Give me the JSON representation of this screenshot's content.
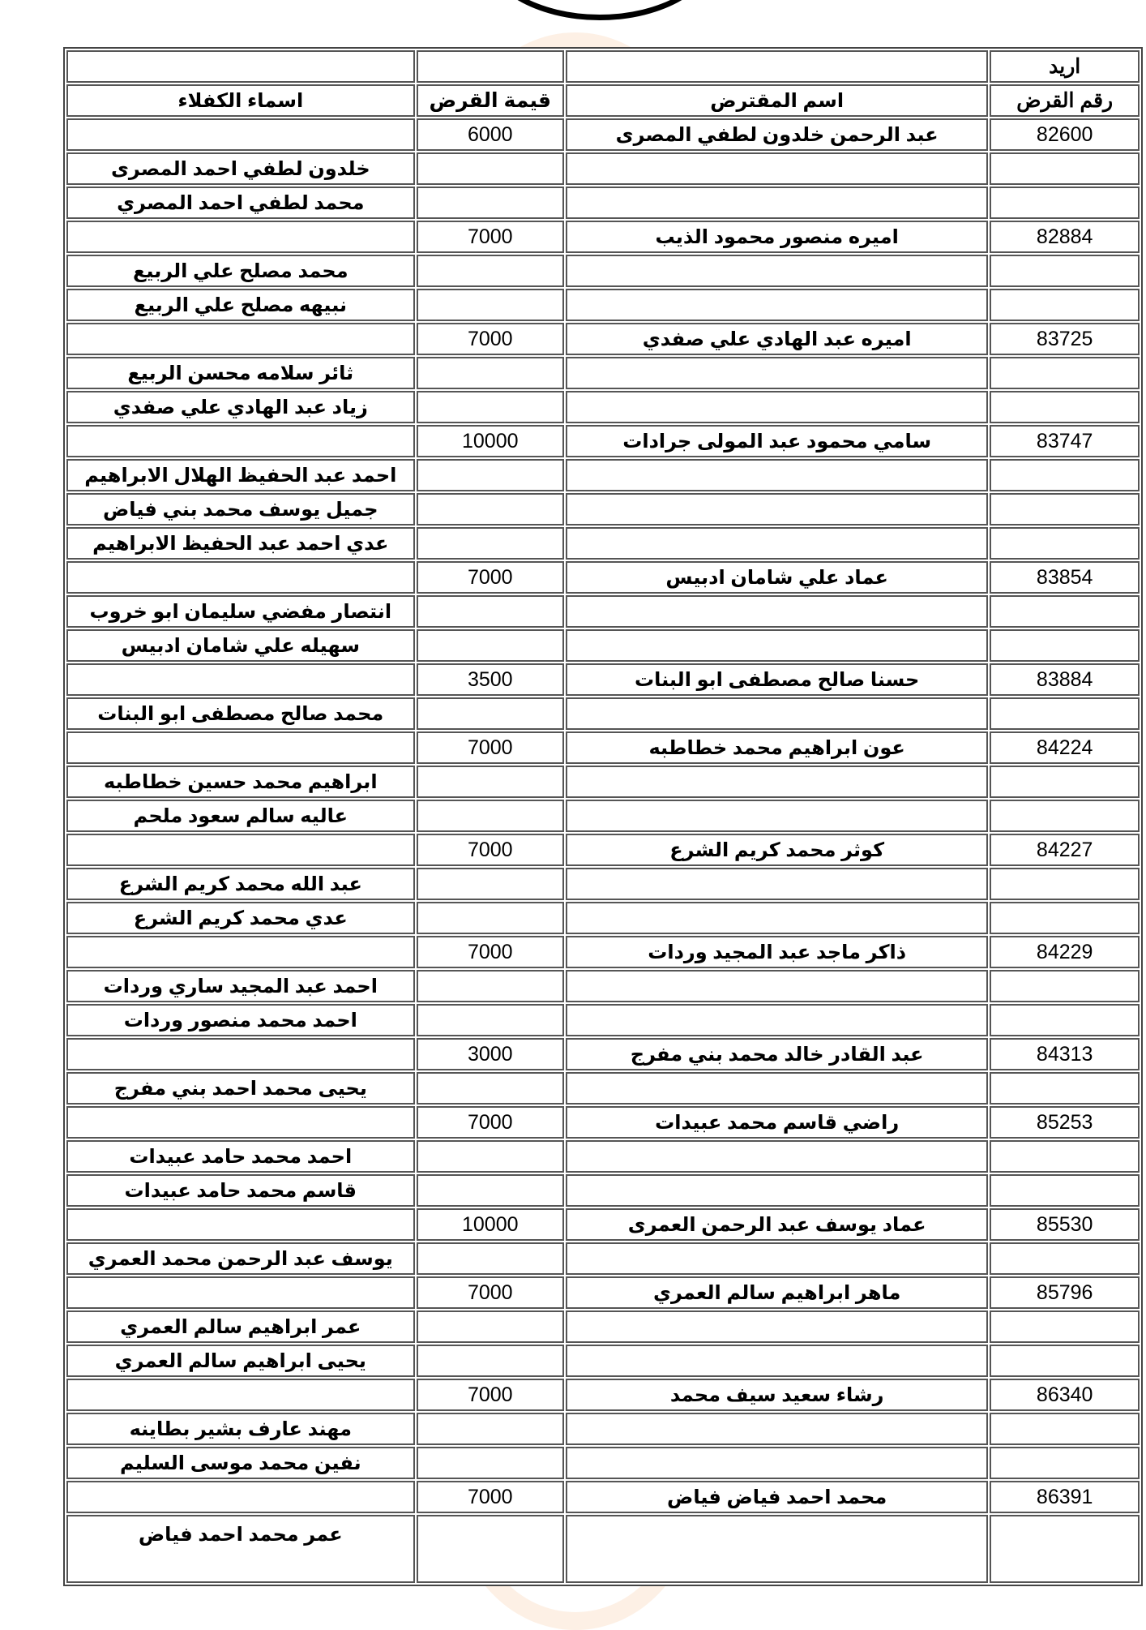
{
  "header": {
    "city": "اريد",
    "col_loan_no": "رقم القرض",
    "col_borrower": "اسم المقترض",
    "col_amount": "قيمة القرض",
    "col_guarantors": "اسماء الكفلاء"
  },
  "rows": [
    {
      "no": "82600",
      "borrower": "عبد الرحمن خلدون لطفي المصرى",
      "amount": "6000",
      "guarantor": ""
    },
    {
      "no": "",
      "borrower": "",
      "amount": "",
      "guarantor": "خلدون لطفي احمد المصرى"
    },
    {
      "no": "",
      "borrower": "",
      "amount": "",
      "guarantor": "محمد لطفي احمد المصري"
    },
    {
      "no": "82884",
      "borrower": "اميره منصور محمود الذيب",
      "amount": "7000",
      "guarantor": ""
    },
    {
      "no": "",
      "borrower": "",
      "amount": "",
      "guarantor": "محمد مصلح علي الربيع"
    },
    {
      "no": "",
      "borrower": "",
      "amount": "",
      "guarantor": "نبيهه مصلح علي الربيع"
    },
    {
      "no": "83725",
      "borrower": "اميره عبد الهادي علي صفدي",
      "amount": "7000",
      "guarantor": ""
    },
    {
      "no": "",
      "borrower": "",
      "amount": "",
      "guarantor": "ثائر سلامه محسن الربيع"
    },
    {
      "no": "",
      "borrower": "",
      "amount": "",
      "guarantor": "زياد عبد الهادي علي صفدي"
    },
    {
      "no": "83747",
      "borrower": "سامي محمود عبد المولى جرادات",
      "amount": "10000",
      "guarantor": ""
    },
    {
      "no": "",
      "borrower": "",
      "amount": "",
      "guarantor": "احمد عبد  الحفيظ الهلال الابراهيم"
    },
    {
      "no": "",
      "borrower": "",
      "amount": "",
      "guarantor": "جميل يوسف محمد بني فياض"
    },
    {
      "no": "",
      "borrower": "",
      "amount": "",
      "guarantor": "عدي احمد عبد  الحفيظ الابراهيم"
    },
    {
      "no": "83854",
      "borrower": "عماد علي شامان ادبيس",
      "amount": "7000",
      "guarantor": ""
    },
    {
      "no": "",
      "borrower": "",
      "amount": "",
      "guarantor": "انتصار مفضي سليمان ابو خروب"
    },
    {
      "no": "",
      "borrower": "",
      "amount": "",
      "guarantor": "سهيله علي شامان ادبيس"
    },
    {
      "no": "83884",
      "borrower": "حسنا صالح مصطفى ابو البنات",
      "amount": "3500",
      "guarantor": ""
    },
    {
      "no": "",
      "borrower": "",
      "amount": "",
      "guarantor": "محمد صالح مصطفى ابو البنات"
    },
    {
      "no": "84224",
      "borrower": "عون ابراهيم محمد خطاطبه",
      "amount": "7000",
      "guarantor": ""
    },
    {
      "no": "",
      "borrower": "",
      "amount": "",
      "guarantor": "ابراهيم محمد حسين خطاطبه"
    },
    {
      "no": "",
      "borrower": "",
      "amount": "",
      "guarantor": "عاليه سالم سعود ملحم"
    },
    {
      "no": "84227",
      "borrower": "كوثر محمد كريم الشرع",
      "amount": "7000",
      "guarantor": ""
    },
    {
      "no": "",
      "borrower": "",
      "amount": "",
      "guarantor": "عبد الله محمد كريم الشرع"
    },
    {
      "no": "",
      "borrower": "",
      "amount": "",
      "guarantor": "عدي محمد كريم الشرع"
    },
    {
      "no": "84229",
      "borrower": "ذاكر ماجد عبد المجيد وردات",
      "amount": "7000",
      "guarantor": ""
    },
    {
      "no": "",
      "borrower": "",
      "amount": "",
      "guarantor": "احمد عبد المجيد ساري وردات"
    },
    {
      "no": "",
      "borrower": "",
      "amount": "",
      "guarantor": "احمد محمد منصور وردات"
    },
    {
      "no": "84313",
      "borrower": "عبد القادر خالد محمد بني مفرج",
      "amount": "3000",
      "guarantor": ""
    },
    {
      "no": "",
      "borrower": "",
      "amount": "",
      "guarantor": "يحيى محمد احمد بني مفرج"
    },
    {
      "no": "85253",
      "borrower": "راضي قاسم محمد عبيدات",
      "amount": "7000",
      "guarantor": ""
    },
    {
      "no": "",
      "borrower": "",
      "amount": "",
      "guarantor": "احمد محمد حامد عبيدات"
    },
    {
      "no": "",
      "borrower": "",
      "amount": "",
      "guarantor": "قاسم محمد حامد عبيدات"
    },
    {
      "no": "85530",
      "borrower": "عماد يوسف عبد الرحمن العمرى",
      "amount": "10000",
      "guarantor": ""
    },
    {
      "no": "",
      "borrower": "",
      "amount": "",
      "guarantor": "يوسف عبد الرحمن محمد العمري"
    },
    {
      "no": "85796",
      "borrower": "ماهر ابراهيم سالم العمري",
      "amount": "7000",
      "guarantor": ""
    },
    {
      "no": "",
      "borrower": "",
      "amount": "",
      "guarantor": "عمر ابراهيم سالم العمري"
    },
    {
      "no": "",
      "borrower": "",
      "amount": "",
      "guarantor": "يحيى ابراهيم سالم العمري"
    },
    {
      "no": "86340",
      "borrower": "رشاء سعيد سيف محمد",
      "amount": "7000",
      "guarantor": ""
    },
    {
      "no": "",
      "borrower": "",
      "amount": "",
      "guarantor": "مهند عارف بشير بطاينه"
    },
    {
      "no": "",
      "borrower": "",
      "amount": "",
      "guarantor": "نفين محمد موسى السليم"
    },
    {
      "no": "86391",
      "borrower": "محمد احمد فياض فياض",
      "amount": "7000",
      "guarantor": ""
    },
    {
      "no": "",
      "borrower": "",
      "amount": "",
      "guarantor": "عمر محمد احمد فياض"
    }
  ],
  "colors": {
    "text": "#000000",
    "border": "#555555",
    "watermark": "#f5aa6e"
  }
}
